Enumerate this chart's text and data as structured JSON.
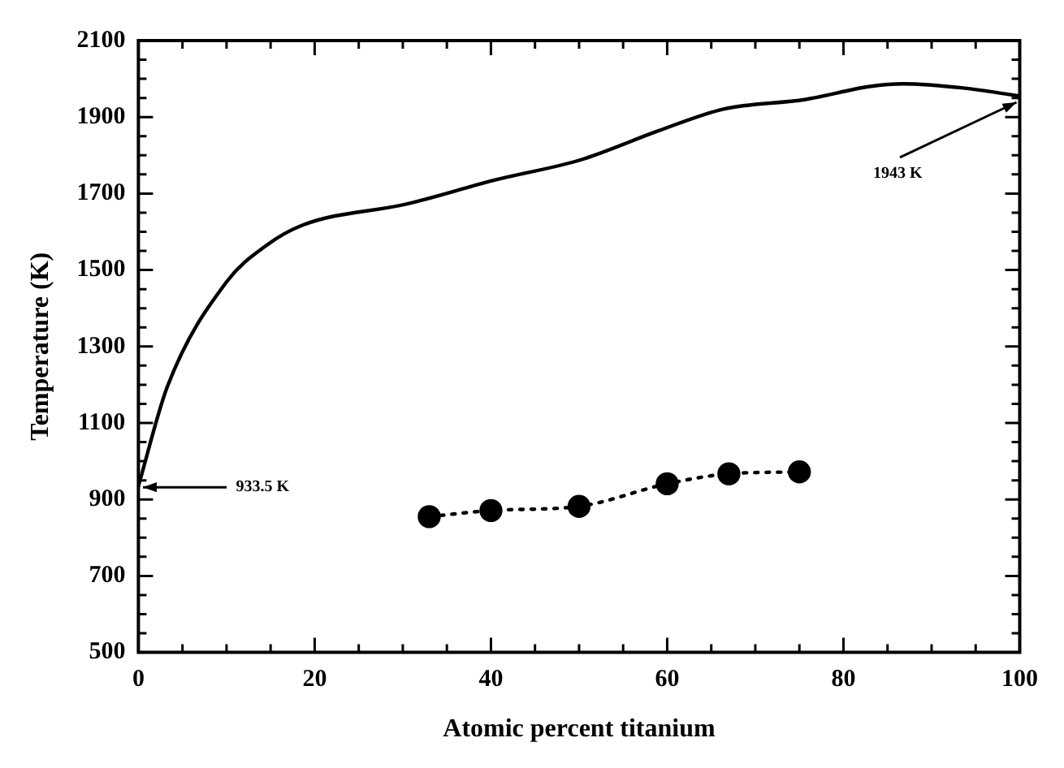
{
  "chart_data": {
    "type": "line",
    "xlabel": "Atomic percent titanium",
    "ylabel": "Temperature (K)",
    "xlim": [
      0,
      100
    ],
    "ylim": [
      500,
      2100
    ],
    "xticks": [
      0,
      {
        "value": 5,
        "label": null
      },
      {
        "value": 10,
        "label": null
      },
      {
        "value": 15,
        "label": null
      },
      20,
      {
        "value": 25,
        "label": null
      },
      {
        "value": 30,
        "label": null
      },
      {
        "value": 35,
        "label": null
      },
      40,
      {
        "value": 45,
        "label": null
      },
      {
        "value": 50,
        "label": null
      },
      {
        "value": 55,
        "label": null
      },
      60,
      {
        "value": 65,
        "label": null
      },
      {
        "value": 70,
        "label": null
      },
      {
        "value": 75,
        "label": null
      },
      80,
      {
        "value": 85,
        "label": null
      },
      {
        "value": 90,
        "label": null
      },
      {
        "value": 95,
        "label": null
      },
      100
    ],
    "yticks": [
      500,
      {
        "value": 550,
        "label": null
      },
      {
        "value": 600,
        "label": null
      },
      {
        "value": 650,
        "label": null
      },
      700,
      {
        "value": 750,
        "label": null
      },
      {
        "value": 800,
        "label": null
      },
      {
        "value": 850,
        "label": null
      },
      900,
      {
        "value": 950,
        "label": null
      },
      {
        "value": 1000,
        "label": null
      },
      {
        "value": 1050,
        "label": null
      },
      1100,
      {
        "value": 1150,
        "label": null
      },
      {
        "value": 1200,
        "label": null
      },
      {
        "value": 1250,
        "label": null
      },
      1300,
      {
        "value": 1350,
        "label": null
      },
      {
        "value": 1400,
        "label": null
      },
      {
        "value": 1450,
        "label": null
      },
      1500,
      {
        "value": 1550,
        "label": null
      },
      {
        "value": 1600,
        "label": null
      },
      {
        "value": 1650,
        "label": null
      },
      1700,
      {
        "value": 1750,
        "label": null
      },
      {
        "value": 1800,
        "label": null
      },
      {
        "value": 1850,
        "label": null
      },
      1900,
      {
        "value": 1950,
        "label": null
      },
      {
        "value": 2000,
        "label": null
      },
      {
        "value": 2050,
        "label": null
      },
      2100
    ],
    "grid": false,
    "series": [
      {
        "type": "line",
        "color": "#000000",
        "marker": "none",
        "line_style": "solid",
        "x": [
          0,
          3.3,
          10,
          14.5,
          18.7,
          30.5,
          40.4,
          50.3,
          59,
          66.4,
          75.7,
          83,
          86.8,
          93.6,
          100
        ],
        "values": [
          935,
          1196,
          1469,
          1564,
          1618,
          1673,
          1735,
          1789,
          1864,
          1921,
          1946,
          1980,
          1987,
          1976,
          1955
        ]
      },
      {
        "type": "line",
        "color": "#000000",
        "marker": "circle",
        "line_style": "dotted",
        "x": [
          33,
          40,
          50,
          60,
          67,
          75
        ],
        "values": [
          855,
          871,
          882,
          941,
          967,
          972
        ]
      }
    ],
    "annotations": [
      {
        "text": "933.5 K",
        "x": 0,
        "y": 933.5
      },
      {
        "text": "1943 K",
        "x": 100,
        "y": 1943
      }
    ]
  }
}
